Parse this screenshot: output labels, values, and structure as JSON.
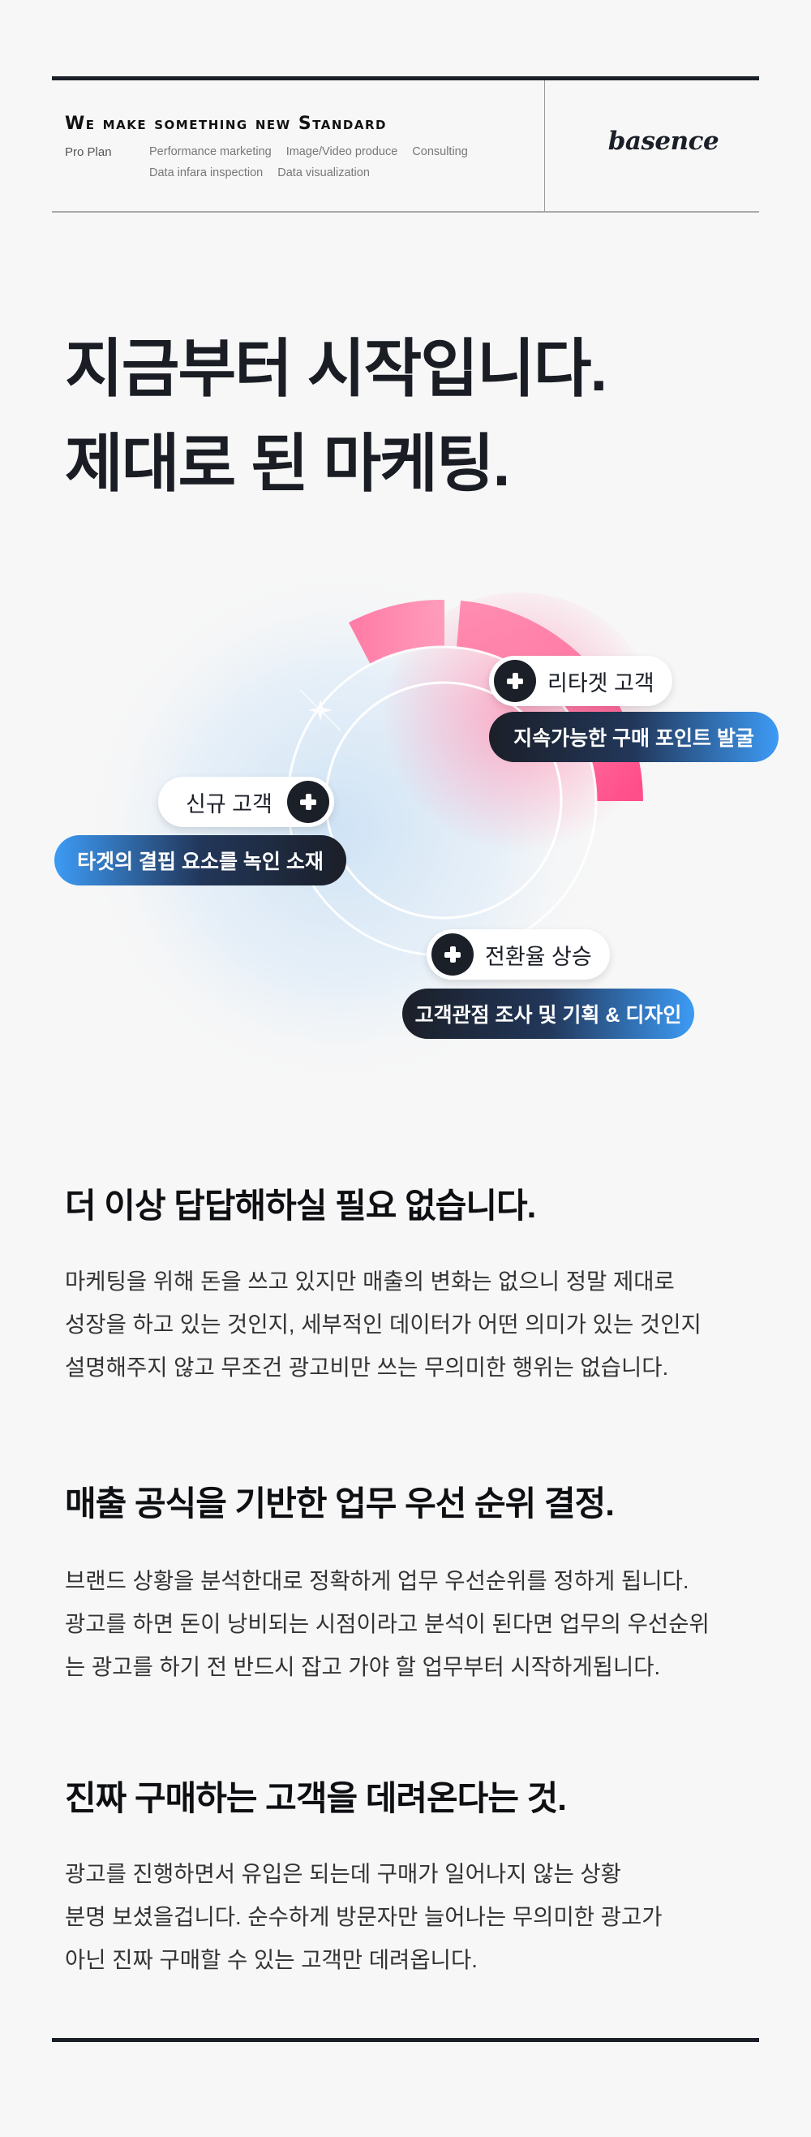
{
  "header": {
    "tagline": "We make something new Standard",
    "plan": "Pro Plan",
    "services": [
      "Performance marketing",
      "Image/Video produce",
      "Consulting",
      "Data infara inspection",
      "Data visualization"
    ],
    "logo": "basence"
  },
  "hero": {
    "lines": [
      "지금부터 시작입니다.",
      "제대로 된 마케팅."
    ]
  },
  "diagram": {
    "colors": {
      "pink": "#ff4f8a",
      "pink_light": "#ff8fb3",
      "dark": "#1b1f28",
      "blue": "#3d9bf5"
    },
    "icon": "plus-icon",
    "items": [
      {
        "title": "리타겟 고객",
        "desc": "지속가능한 구매 포인트 발굴"
      },
      {
        "title": "신규 고객",
        "desc": "타겟의 결핍 요소를 녹인 소재"
      },
      {
        "title": "전환율 상승",
        "desc": "고객관점 조사 및 기획 & 디자인"
      }
    ]
  },
  "sections": [
    {
      "heading": "더 이상 답답해하실 필요 없습니다.",
      "lines": [
        "마케팅을 위해 돈을 쓰고 있지만 매출의 변화는 없으니 정말 제대로",
        "성장을 하고 있는 것인지, 세부적인 데이터가 어떤 의미가 있는 것인지",
        "설명해주지 않고 무조건 광고비만 쓰는 무의미한 행위는 없습니다."
      ]
    },
    {
      "heading": "매출 공식을 기반한 업무 우선 순위 결정.",
      "lines": [
        "브랜드 상황을 분석한대로 정확하게 업무 우선순위를 정하게 됩니다.",
        "광고를 하면 돈이 낭비되는 시점이라고 분석이 된다면 업무의 우선순위",
        "는 광고를 하기 전 반드시 잡고 가야 할 업무부터 시작하게됩니다."
      ]
    },
    {
      "heading": "진짜 구매하는 고객을 데려온다는 것.",
      "lines": [
        "광고를 진행하면서 유입은 되는데 구매가 일어나지 않는 상황",
        "분명 보셨을겁니다. 순수하게 방문자만 늘어나는 무의미한 광고가",
        "아닌 진짜 구매할 수 있는 고객만 데려옵니다."
      ]
    }
  ]
}
